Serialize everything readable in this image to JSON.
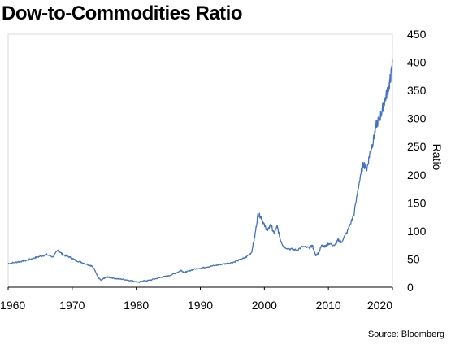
{
  "chart_data": {
    "type": "line",
    "title": "Dow-to-Commodities Ratio",
    "xlabel": "",
    "ylabel": "Ratio",
    "source": "Source: Bloomberg",
    "xlim": [
      1960,
      2020
    ],
    "ylim": [
      0,
      450
    ],
    "x_ticks": [
      1960,
      1970,
      1980,
      1990,
      2000,
      2010,
      2020
    ],
    "y_ticks": [
      0,
      50,
      100,
      150,
      200,
      250,
      300,
      350,
      400,
      450
    ],
    "y_axis_side": "right",
    "grid": false,
    "legend": false,
    "colors": {
      "line": "#4472C4",
      "axis": "#000000",
      "frame": "#d9d9d9"
    },
    "series": [
      {
        "x": [
          1960.0,
          1961.0,
          1962.0,
          1963.0,
          1964.0,
          1965.0,
          1966.0,
          1967.0,
          1967.8,
          1968.5,
          1969.5,
          1970.5,
          1971.5,
          1972.5,
          1973.0,
          1973.5,
          1974.0,
          1974.5,
          1975.0,
          1975.5,
          1976.0,
          1977.0,
          1978.0,
          1979.0,
          1980.0,
          1980.5,
          1981.0,
          1982.0,
          1983.0,
          1984.0,
          1985.0,
          1986.0,
          1987.0,
          1987.5,
          1988.0,
          1989.0,
          1990.0,
          1991.0,
          1992.0,
          1993.0,
          1994.0,
          1995.0,
          1996.0,
          1997.0,
          1998.0,
          1998.5,
          1999.0,
          1999.5,
          2000.0,
          2000.5,
          2001.0,
          2001.5,
          2002.0,
          2002.5,
          2003.0,
          2004.0,
          2005.0,
          2006.0,
          2007.0,
          2007.5,
          2008.0,
          2008.5,
          2009.0,
          2009.5,
          2010.0,
          2011.0,
          2011.5,
          2012.0,
          2013.0,
          2014.0,
          2015.0,
          2015.5,
          2016.0,
          2016.5,
          2017.0,
          2017.5,
          2018.0,
          2018.5,
          2019.0,
          2019.5,
          2019.8,
          2020.0
        ],
        "values": [
          42,
          44,
          46,
          48,
          52,
          55,
          58,
          54,
          66,
          58,
          54,
          48,
          44,
          40,
          38,
          32,
          18,
          12,
          16,
          18,
          17,
          15,
          14,
          12,
          10,
          9,
          11,
          12,
          15,
          18,
          20,
          24,
          30,
          26,
          28,
          32,
          34,
          36,
          38,
          40,
          42,
          44,
          48,
          52,
          62,
          90,
          130,
          125,
          110,
          100,
          112,
          95,
          108,
          85,
          72,
          68,
          66,
          72,
          70,
          74,
          56,
          62,
          76,
          72,
          78,
          74,
          84,
          80,
          100,
          130,
          200,
          220,
          210,
          240,
          260,
          290,
          300,
          320,
          340,
          360,
          380,
          400
        ]
      }
    ]
  }
}
